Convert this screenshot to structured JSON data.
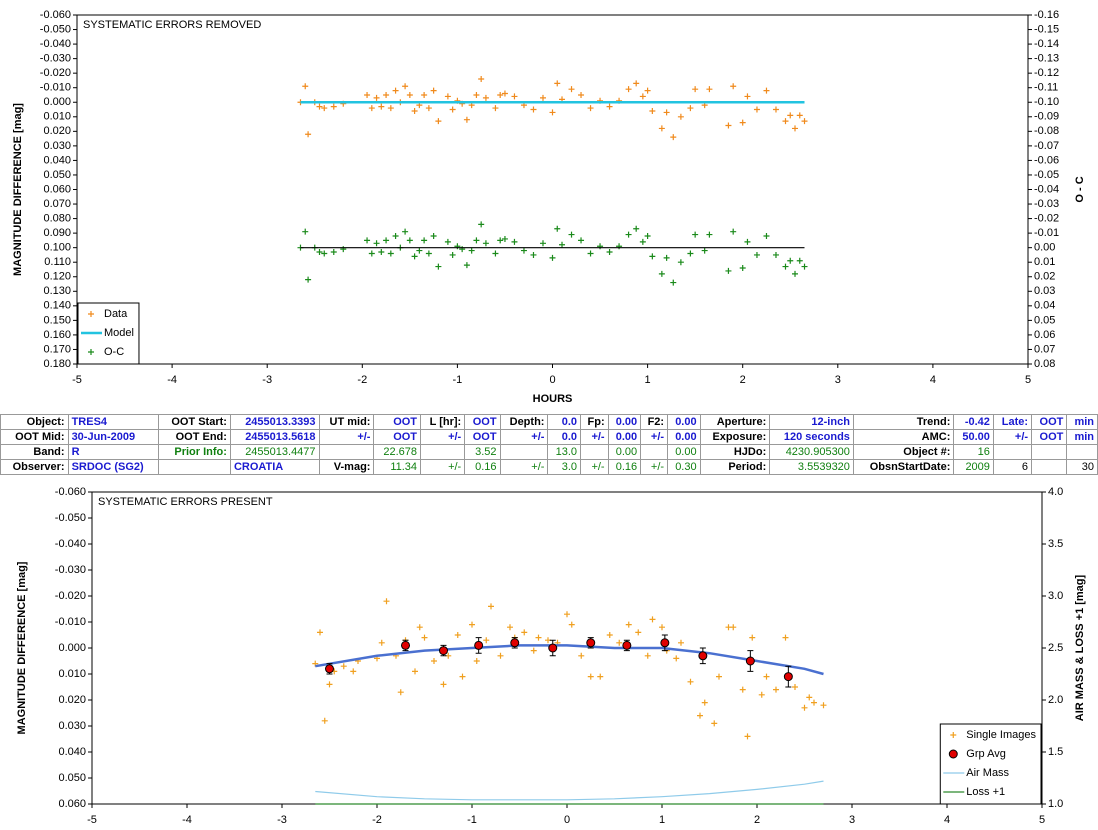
{
  "chart_data": [
    {
      "type": "scatter",
      "title": "SYSTEMATIC ERRORS REMOVED",
      "xlabel": "HOURS",
      "ylabel": "MAGNITUDE DIFFERENCE [mag]",
      "y2label": "O - C",
      "xlim": [
        -5,
        5
      ],
      "xticks": [
        -5,
        -4,
        -3,
        -2,
        -1,
        0,
        1,
        2,
        3,
        4,
        5
      ],
      "ylim": [
        -0.06,
        0.18
      ],
      "y_inverted": true,
      "yticks": [
        {
          "value": -0.06,
          "label": "-0.060"
        },
        {
          "value": -0.05,
          "label": "-0.050"
        },
        {
          "value": -0.04,
          "label": "-0.040"
        },
        {
          "value": -0.03,
          "label": "-0.030"
        },
        {
          "value": -0.02,
          "label": "-0.020"
        },
        {
          "value": -0.01,
          "label": "-0.010"
        },
        {
          "value": 0,
          "label": "0.000"
        },
        {
          "value": 0.01,
          "label": "0.010"
        },
        {
          "value": 0.02,
          "label": "0.020"
        },
        {
          "value": 0.03,
          "label": "0.030"
        },
        {
          "value": 0.04,
          "label": "0.040"
        },
        {
          "value": 0.05,
          "label": "0.050"
        },
        {
          "value": 0.06,
          "label": "0.060"
        },
        {
          "value": 0.07,
          "label": "0.070"
        },
        {
          "value": 0.08,
          "label": "0.080"
        },
        {
          "value": 0.09,
          "label": "0.090"
        },
        {
          "value": 0.1,
          "label": "0.100"
        },
        {
          "value": 0.11,
          "label": "0.110"
        },
        {
          "value": 0.12,
          "label": "0.120"
        },
        {
          "value": 0.13,
          "label": "0.130"
        },
        {
          "value": 0.14,
          "label": "0.140"
        },
        {
          "value": 0.15,
          "label": "0.150"
        },
        {
          "value": 0.16,
          "label": "0.160"
        },
        {
          "value": 0.17,
          "label": "0.170"
        },
        {
          "value": 0.18,
          "label": "0.180"
        }
      ],
      "y2lim": [
        -0.16,
        0.08
      ],
      "y2_inverted": true,
      "y2ticks": [
        -0.16,
        -0.15,
        -0.14,
        -0.13,
        -0.12,
        -0.11,
        {
          "value": -0.1,
          "label": "-0.10"
        },
        -0.09,
        -0.08,
        -0.07,
        -0.06,
        -0.05,
        -0.04,
        -0.03,
        -0.02,
        -0.01,
        {
          "value": 0,
          "label": "0.00"
        },
        0.01,
        0.02,
        0.03,
        0.04,
        0.05,
        0.06,
        0.07,
        0.08
      ],
      "legend": "bottom-left",
      "series": [
        {
          "name": "Data",
          "marker": "plus",
          "color": "#f08a1c",
          "x": [
            -2.65,
            -2.6,
            -2.57,
            -2.5,
            -2.45,
            -2.4,
            -2.3,
            -2.2,
            -1.95,
            -1.9,
            -1.85,
            -1.8,
            -1.75,
            -1.7,
            -1.65,
            -1.6,
            -1.55,
            -1.5,
            -1.45,
            -1.4,
            -1.35,
            -1.3,
            -1.25,
            -1.2,
            -1.1,
            -1.05,
            -1.0,
            -0.95,
            -0.9,
            -0.85,
            -0.8,
            -0.75,
            -0.7,
            -0.6,
            -0.55,
            -0.5,
            -0.4,
            -0.3,
            -0.2,
            -0.1,
            0.0,
            0.05,
            0.1,
            0.2,
            0.3,
            0.4,
            0.5,
            0.6,
            0.7,
            0.8,
            0.88,
            0.95,
            1.0,
            1.05,
            1.15,
            1.2,
            1.27,
            1.35,
            1.45,
            1.5,
            1.6,
            1.65,
            1.85,
            1.9,
            2.0,
            2.05,
            2.15,
            2.25,
            2.35,
            2.45,
            2.5,
            2.55,
            2.6,
            2.65
          ],
          "values": [
            0.0,
            -0.011,
            0.022,
            0.0,
            0.003,
            0.004,
            0.003,
            0.001,
            -0.005,
            0.004,
            -0.003,
            0.003,
            -0.005,
            0.004,
            -0.008,
            0.0,
            -0.011,
            -0.005,
            0.006,
            0.002,
            -0.005,
            0.004,
            -0.008,
            0.013,
            -0.004,
            0.005,
            -0.001,
            0.001,
            0.012,
            0.002,
            -0.005,
            -0.016,
            -0.003,
            0.004,
            -0.005,
            -0.006,
            -0.004,
            0.002,
            0.005,
            -0.003,
            0.007,
            -0.013,
            -0.002,
            -0.009,
            -0.005,
            0.004,
            -0.001,
            0.003,
            -0.001,
            -0.009,
            -0.013,
            -0.004,
            -0.008,
            0.006,
            0.018,
            0.007,
            0.024,
            0.01,
            0.004,
            -0.009,
            0.002,
            -0.009,
            0.016,
            -0.011,
            0.014,
            -0.004,
            0.005,
            -0.008,
            0.005,
            0.013,
            0.009,
            0.018,
            0.009,
            0.013
          ]
        },
        {
          "name": "Model",
          "marker": "line",
          "color": "#22c3e0",
          "x": [
            -2.65,
            2.65
          ],
          "values": [
            0,
            0
          ]
        },
        {
          "name": "O-C",
          "marker": "plus",
          "color": "#1a8a1a",
          "axis": "y2",
          "x": [
            -2.65,
            -2.6,
            -2.57,
            -2.5,
            -2.45,
            -2.4,
            -2.3,
            -2.2,
            -1.95,
            -1.9,
            -1.85,
            -1.8,
            -1.75,
            -1.7,
            -1.65,
            -1.6,
            -1.55,
            -1.5,
            -1.45,
            -1.4,
            -1.35,
            -1.3,
            -1.25,
            -1.2,
            -1.1,
            -1.05,
            -1.0,
            -0.95,
            -0.9,
            -0.85,
            -0.8,
            -0.75,
            -0.7,
            -0.6,
            -0.55,
            -0.5,
            -0.4,
            -0.3,
            -0.2,
            -0.1,
            0.0,
            0.05,
            0.1,
            0.2,
            0.3,
            0.4,
            0.5,
            0.6,
            0.7,
            0.8,
            0.88,
            0.95,
            1.0,
            1.05,
            1.15,
            1.2,
            1.27,
            1.35,
            1.45,
            1.5,
            1.6,
            1.65,
            1.85,
            1.9,
            2.0,
            2.05,
            2.15,
            2.25,
            2.35,
            2.45,
            2.5,
            2.55,
            2.6,
            2.65
          ],
          "values": [
            0.0,
            -0.011,
            0.022,
            0.0,
            0.003,
            0.004,
            0.003,
            0.001,
            -0.005,
            0.004,
            -0.003,
            0.003,
            -0.005,
            0.004,
            -0.008,
            0.0,
            -0.011,
            -0.005,
            0.006,
            0.002,
            -0.005,
            0.004,
            -0.008,
            0.013,
            -0.004,
            0.005,
            -0.001,
            0.001,
            0.012,
            0.002,
            -0.005,
            -0.016,
            -0.003,
            0.004,
            -0.005,
            -0.006,
            -0.004,
            0.002,
            0.005,
            -0.003,
            0.007,
            -0.013,
            -0.002,
            -0.009,
            -0.005,
            0.004,
            -0.001,
            0.003,
            -0.001,
            -0.009,
            -0.013,
            -0.004,
            -0.008,
            0.006,
            0.018,
            0.007,
            0.024,
            0.01,
            0.004,
            -0.009,
            0.002,
            -0.009,
            0.016,
            -0.011,
            0.014,
            -0.004,
            0.005,
            -0.008,
            0.005,
            0.013,
            0.009,
            0.018,
            0.009,
            0.013
          ]
        },
        {
          "marker": "line",
          "color": "#000000",
          "axis": "y2",
          "x": [
            -2.65,
            2.65
          ],
          "values": [
            0,
            0
          ]
        }
      ]
    },
    {
      "type": "scatter",
      "title": "SYSTEMATIC ERRORS PRESENT",
      "ylabel": "MAGNITUDE DIFFERENCE [mag]",
      "y2label": "AIR MASS & LOSS +1 [mag]",
      "xlim": [
        -5,
        5
      ],
      "xticks": [
        -5,
        -4,
        -3,
        -2,
        -1,
        0,
        1,
        2,
        3,
        4,
        5
      ],
      "ylim": [
        -0.06,
        0.06
      ],
      "y_inverted": true,
      "yticks": [
        {
          "value": -0.06,
          "label": "-0.060"
        },
        {
          "value": -0.05,
          "label": "-0.050"
        },
        {
          "value": -0.04,
          "label": "-0.040"
        },
        {
          "value": -0.03,
          "label": "-0.030"
        },
        {
          "value": -0.02,
          "label": "-0.020"
        },
        {
          "value": -0.01,
          "label": "-0.010"
        },
        {
          "value": 0,
          "label": "0.000"
        },
        {
          "value": 0.01,
          "label": "0.010"
        },
        {
          "value": 0.02,
          "label": "0.020"
        },
        {
          "value": 0.03,
          "label": "0.030"
        },
        {
          "value": 0.04,
          "label": "0.040"
        },
        {
          "value": 0.05,
          "label": "0.050"
        },
        {
          "value": 0.06,
          "label": "0.060"
        }
      ],
      "y2lim": [
        1.0,
        4.0
      ],
      "y2ticks": [
        {
          "value": 1,
          "label": "1.0"
        },
        1.5,
        {
          "value": 2,
          "label": "2.0"
        },
        2.5,
        {
          "value": 3,
          "label": "3.0"
        },
        3.5,
        {
          "value": 4,
          "label": "4.0"
        }
      ],
      "legend": "bottom-right",
      "series": [
        {
          "name": "Single Images",
          "marker": "plus",
          "color": "#f0a020",
          "x": [
            -2.65,
            -2.6,
            -2.55,
            -2.5,
            -2.45,
            -2.35,
            -2.25,
            -2.2,
            -2.0,
            -1.95,
            -1.9,
            -1.8,
            -1.75,
            -1.7,
            -1.6,
            -1.55,
            -1.5,
            -1.4,
            -1.3,
            -1.25,
            -1.15,
            -1.1,
            -1.0,
            -0.95,
            -0.85,
            -0.8,
            -0.7,
            -0.6,
            -0.55,
            -0.45,
            -0.35,
            -0.3,
            -0.2,
            -0.1,
            0.0,
            0.05,
            0.15,
            0.25,
            0.35,
            0.45,
            0.55,
            0.65,
            0.75,
            0.85,
            0.9,
            1.0,
            1.05,
            1.15,
            1.2,
            1.3,
            1.4,
            1.45,
            1.55,
            1.6,
            1.7,
            1.75,
            1.85,
            1.9,
            1.95,
            2.05,
            2.1,
            2.2,
            2.3,
            2.4,
            2.5,
            2.55,
            2.6,
            2.7
          ],
          "values": [
            0.006,
            -0.006,
            0.028,
            0.014,
            0.009,
            0.007,
            0.009,
            0.005,
            0.004,
            -0.002,
            -0.018,
            0.003,
            0.017,
            -0.003,
            0.009,
            -0.008,
            -0.004,
            0.005,
            0.014,
            0.003,
            -0.005,
            0.011,
            -0.009,
            0.005,
            -0.003,
            -0.016,
            0.003,
            -0.008,
            -0.004,
            -0.006,
            0.001,
            -0.004,
            -0.003,
            -0.002,
            -0.013,
            -0.009,
            0.003,
            0.011,
            0.011,
            -0.005,
            -0.002,
            -0.009,
            -0.006,
            0.003,
            -0.011,
            -0.008,
            0.001,
            0.004,
            -0.002,
            0.013,
            0.026,
            0.021,
            0.029,
            0.011,
            -0.008,
            -0.008,
            0.016,
            0.034,
            -0.004,
            0.018,
            0.011,
            0.016,
            -0.004,
            0.015,
            0.023,
            0.019,
            0.021,
            0.022
          ]
        },
        {
          "marker": "line",
          "color": "#4a70d0",
          "x": [
            -2.65,
            -2.0,
            -1.5,
            -1.0,
            -0.5,
            0.0,
            0.5,
            1.0,
            1.5,
            2.0,
            2.5,
            2.7
          ],
          "values": [
            0.007,
            0.003,
            0.001,
            0.0,
            -0.001,
            -0.001,
            0.0,
            0.0,
            0.002,
            0.005,
            0.008,
            0.01
          ]
        },
        {
          "name": "Grp Avg",
          "marker": "circle",
          "color": "#e00000",
          "x": [
            -2.5,
            -1.7,
            -1.3,
            -0.93,
            -0.55,
            -0.15,
            0.25,
            0.63,
            1.03,
            1.43,
            1.93,
            2.33
          ],
          "values": [
            0.008,
            -0.001,
            0.001,
            -0.001,
            -0.002,
            0.0,
            -0.002,
            -0.001,
            -0.002,
            0.003,
            0.005,
            0.011
          ],
          "errors": [
            0.002,
            0.002,
            0.002,
            0.003,
            0.002,
            0.003,
            0.002,
            0.002,
            0.003,
            0.003,
            0.004,
            0.004
          ]
        },
        {
          "name": "Air Mass",
          "marker": "line",
          "color": "#8fcbea",
          "axis": "y2",
          "x": [
            -2.65,
            -2.0,
            -1.5,
            -1.0,
            -0.5,
            0.0,
            0.5,
            1.0,
            1.5,
            2.0,
            2.5,
            2.7
          ],
          "values": [
            1.12,
            1.07,
            1.05,
            1.04,
            1.04,
            1.04,
            1.05,
            1.07,
            1.1,
            1.14,
            1.19,
            1.22
          ]
        },
        {
          "name": "Loss +1",
          "marker": "line",
          "color": "#2e8b2e",
          "axis": "y2",
          "x": [
            -2.65,
            2.7
          ],
          "values": [
            1.0,
            1.0
          ]
        }
      ]
    }
  ],
  "table": {
    "rows": [
      [
        "Object:",
        "TRES4",
        "OOT Start:",
        "2455013.3393",
        "UT mid:",
        "OOT",
        "L [hr]:",
        "OOT",
        "Depth:",
        "0.0",
        "Fp:",
        "0.00",
        "F2:",
        "0.00",
        "Aperture:",
        "12-inch",
        "Trend:",
        "-0.42",
        "Late:",
        "OOT",
        "min"
      ],
      [
        "OOT Mid:",
        "30-Jun-2009",
        "OOT End:",
        "2455013.5618",
        "+/-",
        "OOT",
        "+/-",
        "OOT",
        "+/-",
        "0.0",
        "+/-",
        "0.00",
        "+/-",
        "0.00",
        "Exposure:",
        "120 seconds",
        "AMC:",
        "50.00",
        "+/-",
        "OOT",
        "min"
      ],
      [
        "Band:",
        "R",
        "Prior Info:",
        "2455013.4477",
        null,
        "22.678",
        null,
        "3.52",
        null,
        "13.0",
        null,
        "0.00",
        null,
        "0.00",
        "HJDo:",
        "4230.905300",
        "Object #:",
        "16",
        null,
        null,
        null
      ],
      [
        "Observer:",
        "SRDOC (SG2)",
        null,
        "CROATIA",
        "V-mag:",
        "11.34",
        "+/-",
        "0.16",
        "+/-",
        "3.0",
        "+/-",
        "0.16",
        "+/-",
        "0.30",
        "Period:",
        "3.5539320",
        "ObsnStartDate:",
        "2009",
        "6",
        null,
        "30"
      ]
    ]
  }
}
